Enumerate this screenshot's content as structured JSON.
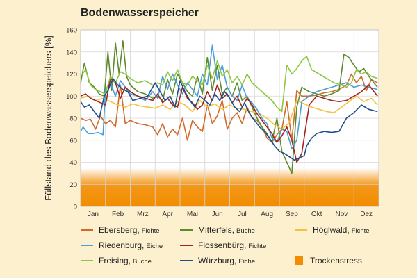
{
  "chart_data": {
    "type": "line",
    "title": "Bodenwasserspeicher",
    "ylabel": "Füllstand des Bodenwasserspeichers [%]",
    "xlabel": "",
    "ylim": [
      0,
      160
    ],
    "yticks": [
      0,
      20,
      40,
      60,
      80,
      100,
      120,
      140,
      160
    ],
    "categories": [
      "Jan",
      "Feb",
      "Mrz",
      "Apr",
      "Mai",
      "Jun",
      "Jul",
      "Aug",
      "Sep",
      "Okt",
      "Nov",
      "Dez"
    ],
    "x_unit": "month",
    "grid": true,
    "legend_position": "bottom",
    "drought_band": {
      "name": "Trockenstress",
      "from": 0,
      "to": 35,
      "color": "#f28c00"
    },
    "series": [
      {
        "name": "Ebersberg",
        "species": "Fichte",
        "color": "#d0692a",
        "x": [
          0,
          0.2,
          0.4,
          0.6,
          0.8,
          1.0,
          1.2,
          1.4,
          1.6,
          1.8,
          2.0,
          2.3,
          2.6,
          2.9,
          3.1,
          3.3,
          3.5,
          3.7,
          3.9,
          4.1,
          4.3,
          4.5,
          4.7,
          4.9,
          5.1,
          5.3,
          5.5,
          5.7,
          5.9,
          6.1,
          6.3,
          6.5,
          6.7,
          6.9,
          7.1,
          7.3,
          7.5,
          7.7,
          7.9,
          8.1,
          8.3,
          8.5,
          8.7,
          8.9,
          9.2,
          9.5,
          9.8,
          10.1,
          10.4,
          10.7,
          10.9,
          11.1,
          11.3,
          11.5,
          11.7,
          11.95
        ],
        "y": [
          80,
          78,
          79,
          70,
          82,
          75,
          78,
          72,
          110,
          75,
          78,
          75,
          74,
          72,
          65,
          75,
          63,
          70,
          65,
          80,
          60,
          78,
          72,
          68,
          92,
          75,
          82,
          96,
          70,
          80,
          85,
          75,
          90,
          80,
          78,
          72,
          62,
          58,
          65,
          70,
          95,
          60,
          105,
          100,
          100,
          101,
          103,
          104,
          106,
          110,
          120,
          112,
          118,
          105,
          115,
          112
        ]
      },
      {
        "name": "Mitterfels",
        "species": "Buche",
        "color": "#5d8a2c",
        "x": [
          0,
          0.15,
          0.35,
          0.55,
          0.75,
          0.95,
          1.1,
          1.25,
          1.4,
          1.55,
          1.7,
          1.85,
          2.0,
          2.3,
          2.6,
          2.9,
          3.1,
          3.3,
          3.5,
          3.7,
          3.9,
          4.1,
          4.3,
          4.5,
          4.7,
          4.9,
          5.1,
          5.3,
          5.5,
          5.7,
          5.9,
          6.1,
          6.3,
          6.5,
          6.7,
          6.9,
          7.1,
          7.3,
          7.5,
          7.7,
          7.9,
          8.1,
          8.3,
          8.5,
          8.7,
          8.9,
          9.2,
          9.5,
          9.8,
          10.1,
          10.4,
          10.6,
          10.8,
          11.0,
          11.2,
          11.4,
          11.6,
          11.8,
          11.95
        ],
        "y": [
          112,
          130,
          112,
          108,
          102,
          100,
          140,
          105,
          148,
          120,
          150,
          118,
          110,
          104,
          102,
          98,
          100,
          96,
          115,
          102,
          120,
          112,
          104,
          100,
          118,
          102,
          135,
          105,
          128,
          102,
          108,
          100,
          112,
          96,
          100,
          90,
          80,
          72,
          66,
          58,
          80,
          50,
          40,
          30,
          90,
          108,
          104,
          102,
          100,
          102,
          105,
          138,
          135,
          128,
          122,
          125,
          118,
          112,
          108
        ]
      },
      {
        "name": "Höglwald",
        "species": "Fichte",
        "color": "#f5c23e",
        "x": [
          0,
          0.3,
          0.6,
          0.9,
          1.2,
          1.5,
          1.8,
          2.1,
          2.4,
          2.7,
          3.0,
          3.3,
          3.6,
          3.9,
          4.2,
          4.5,
          4.8,
          5.1,
          5.4,
          5.7,
          6.0,
          6.3,
          6.6,
          6.9,
          7.2,
          7.5,
          7.8,
          8.1,
          8.4,
          8.7,
          9.0,
          9.3,
          9.6,
          9.9,
          10.2,
          10.5,
          10.8,
          11.1,
          11.4,
          11.7,
          11.95
        ],
        "y": [
          98,
          100,
          96,
          98,
          95,
          92,
          90,
          93,
          91,
          90,
          89,
          92,
          88,
          95,
          92,
          86,
          96,
          90,
          93,
          88,
          92,
          89,
          88,
          86,
          84,
          80,
          74,
          70,
          76,
          96,
          93,
          90,
          88,
          86,
          85,
          90,
          95,
          100,
          95,
          98,
          92
        ]
      },
      {
        "name": "Riedenburg",
        "species": "Eiche",
        "color": "#4a9fd8",
        "x": [
          0,
          0.1,
          0.3,
          0.5,
          0.7,
          0.9,
          1.0,
          1.2,
          1.4,
          1.6,
          1.8,
          2.0,
          2.3,
          2.6,
          2.9,
          3.1,
          3.3,
          3.5,
          3.7,
          3.9,
          4.1,
          4.3,
          4.5,
          4.7,
          4.9,
          5.1,
          5.3,
          5.5,
          5.7,
          5.9,
          6.1,
          6.3,
          6.5,
          6.7,
          6.9,
          7.1,
          7.3,
          7.5,
          7.7,
          7.9,
          8.1,
          8.3,
          8.5,
          8.7,
          8.9,
          9.2,
          9.5,
          9.8,
          10.1,
          10.4,
          10.7,
          11.0,
          11.3,
          11.6,
          11.95
        ],
        "y": [
          68,
          72,
          66,
          66,
          67,
          65,
          106,
          112,
          100,
          114,
          108,
          102,
          100,
          96,
          104,
          98,
          118,
          106,
          120,
          110,
          102,
          112,
          106,
          100,
          120,
          110,
          146,
          115,
          128,
          108,
          100,
          96,
          110,
          98,
          94,
          88,
          80,
          75,
          62,
          58,
          70,
          68,
          52,
          60,
          95,
          100,
          104,
          106,
          108,
          110,
          112,
          108,
          110,
          108,
          106
        ]
      },
      {
        "name": "Flossenbürg",
        "species": "Fichte",
        "color": "#a1251f",
        "x": [
          0,
          0.2,
          0.4,
          0.6,
          0.8,
          1.0,
          1.2,
          1.4,
          1.6,
          1.8,
          2.0,
          2.3,
          2.6,
          2.9,
          3.1,
          3.3,
          3.5,
          3.7,
          3.9,
          4.1,
          4.3,
          4.5,
          4.7,
          4.9,
          5.1,
          5.3,
          5.5,
          5.7,
          5.9,
          6.1,
          6.3,
          6.5,
          6.7,
          6.9,
          7.1,
          7.3,
          7.5,
          7.7,
          7.9,
          8.1,
          8.3,
          8.5,
          8.7,
          8.9,
          9.2,
          9.5,
          9.8,
          10.1,
          10.4,
          10.7,
          11.0,
          11.3,
          11.6,
          11.95
        ],
        "y": [
          100,
          102,
          98,
          96,
          94,
          92,
          116,
          112,
          98,
          108,
          104,
          100,
          98,
          96,
          102,
          94,
          98,
          92,
          90,
          108,
          98,
          94,
          88,
          92,
          104,
          96,
          110,
          98,
          102,
          94,
          100,
          90,
          98,
          92,
          84,
          78,
          72,
          66,
          58,
          64,
          72,
          60,
          40,
          48,
          92,
          100,
          98,
          96,
          95,
          96,
          100,
          104,
          110,
          100
        ]
      },
      {
        "name": "Freising",
        "species": "Buche",
        "color": "#8dc63f",
        "x": [
          0,
          0.2,
          0.4,
          0.6,
          0.8,
          1.0,
          1.2,
          1.4,
          1.6,
          1.8,
          2.0,
          2.3,
          2.6,
          2.9,
          3.1,
          3.3,
          3.5,
          3.7,
          3.9,
          4.1,
          4.3,
          4.5,
          4.7,
          4.9,
          5.1,
          5.3,
          5.5,
          5.7,
          5.9,
          6.1,
          6.3,
          6.5,
          6.7,
          6.9,
          7.1,
          7.3,
          7.5,
          7.7,
          7.9,
          8.1,
          8.3,
          8.5,
          8.7,
          8.9,
          9.1,
          9.3,
          9.6,
          9.9,
          10.2,
          10.5,
          10.7,
          10.9,
          11.1,
          11.3,
          11.5,
          11.7,
          11.95
        ],
        "y": [
          118,
          124,
          110,
          106,
          104,
          102,
          118,
          112,
          122,
          120,
          116,
          112,
          114,
          110,
          112,
          110,
          122,
          114,
          124,
          112,
          110,
          118,
          114,
          110,
          128,
          116,
          132,
          118,
          124,
          112,
          118,
          110,
          120,
          112,
          108,
          104,
          100,
          96,
          90,
          86,
          128,
          120,
          125,
          132,
          136,
          124,
          120,
          116,
          112,
          110,
          108,
          112,
          124,
          120,
          122,
          118,
          116
        ]
      },
      {
        "name": "Würzburg",
        "species": "Eiche",
        "color": "#1f4e8c",
        "x": [
          0,
          0.15,
          0.35,
          0.55,
          0.75,
          0.95,
          1.1,
          1.3,
          1.5,
          1.7,
          1.9,
          2.1,
          2.4,
          2.7,
          3.0,
          3.2,
          3.4,
          3.6,
          3.8,
          4.0,
          4.2,
          4.4,
          4.6,
          4.8,
          5.0,
          5.2,
          5.4,
          5.6,
          5.8,
          6.0,
          6.2,
          6.4,
          6.6,
          6.8,
          7.0,
          7.2,
          7.4,
          7.6,
          7.8,
          8.0,
          8.2,
          8.4,
          8.6,
          8.8,
          9.0,
          9.1,
          9.3,
          9.5,
          9.8,
          10.1,
          10.4,
          10.7,
          11.0,
          11.3,
          11.6,
          11.95
        ],
        "y": [
          95,
          90,
          92,
          86,
          80,
          100,
          105,
          116,
          110,
          106,
          104,
          96,
          98,
          100,
          112,
          104,
          96,
          100,
          90,
          114,
          104,
          96,
          90,
          100,
          96,
          92,
          102,
          96,
          104,
          98,
          90,
          86,
          94,
          84,
          78,
          72,
          68,
          62,
          55,
          50,
          48,
          45,
          42,
          44,
          46,
          55,
          62,
          66,
          68,
          67,
          68,
          80,
          85,
          92,
          88,
          86
        ]
      }
    ]
  }
}
